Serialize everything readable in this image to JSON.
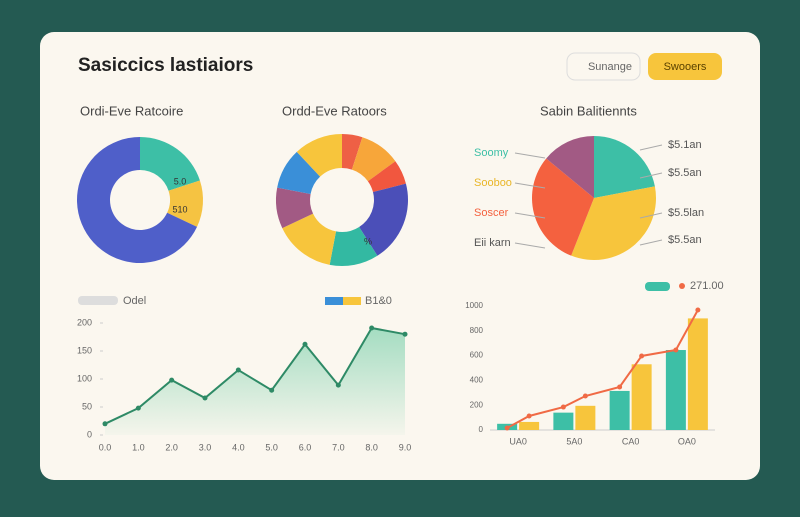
{
  "header": {
    "title": "Sasiccics lastiaiors",
    "buttons": [
      "Sunange",
      "Swooers"
    ]
  },
  "chart_data": [
    {
      "type": "donut",
      "title": "Ordi-Eve Ratcoire",
      "categories": [
        null,
        null,
        null
      ],
      "values": [
        20,
        12,
        68
      ],
      "colors": [
        "#3dbfa6",
        "#f5c342",
        "#4f5fc9"
      ],
      "annotations": [
        "5.0",
        "510"
      ]
    },
    {
      "type": "donut",
      "title": "Ordd-Eve Ratoors",
      "categories": [
        null,
        null,
        null,
        null,
        null,
        null,
        null,
        null,
        null
      ],
      "values": [
        5,
        10,
        6,
        20,
        12,
        15,
        10,
        10,
        12
      ],
      "colors": [
        "#ee6045",
        "#f7a63a",
        "#f1573f",
        "#4b4fb8",
        "#33b9a2",
        "#f7c53c",
        "#a25a84",
        "#3a8fd8",
        "#f7c53c"
      ],
      "annotations": [
        "%"
      ]
    },
    {
      "type": "pie",
      "title": "Sabin Balitiennts",
      "categories": [
        "Soomy",
        "Sooboo",
        "Soscer",
        "Eii karn"
      ],
      "values": [
        22,
        34,
        30,
        14
      ],
      "colors": [
        "#3dbfa6",
        "#f7c53c",
        "#f4613f",
        "#a25a84"
      ],
      "label_colors": [
        "#3dbfa6",
        "#e9b628",
        "#f4613f",
        "#555555"
      ],
      "annotations": [
        "$5.1an",
        "$5.5an",
        "$5.5lan",
        "$5.5an"
      ]
    },
    {
      "type": "area",
      "legend": [
        "Odel",
        "B1&0"
      ],
      "categories": [
        "0.0",
        "1.0",
        "2.0",
        "3.0",
        "4.0",
        "5.0",
        "6.0",
        "7.0",
        "8.0",
        "9.0"
      ],
      "values": [
        20,
        48,
        98,
        66,
        116,
        80,
        162,
        89,
        191,
        180
      ],
      "color": "#2e8a66",
      "ylim": [
        0,
        200
      ],
      "yticks": [
        0,
        50,
        100,
        150,
        200
      ]
    },
    {
      "type": "combo",
      "legend": [
        "271.00"
      ],
      "categories": [
        "UA0",
        "5A0",
        "CA0",
        "OA0"
      ],
      "series": [
        {
          "color": "#3dbfa6",
          "values": [
            50,
            140,
            315,
            645
          ]
        },
        {
          "color": "#f7c53c",
          "values": [
            65,
            195,
            530,
            900
          ]
        }
      ],
      "line": {
        "color": "#f06a45",
        "values": [
          16,
          113,
          185,
          274,
          347,
          597,
          645,
          968
        ]
      },
      "ylim": [
        0,
        1000
      ],
      "yticks": [
        0,
        200,
        400,
        600,
        800,
        1000
      ]
    }
  ]
}
